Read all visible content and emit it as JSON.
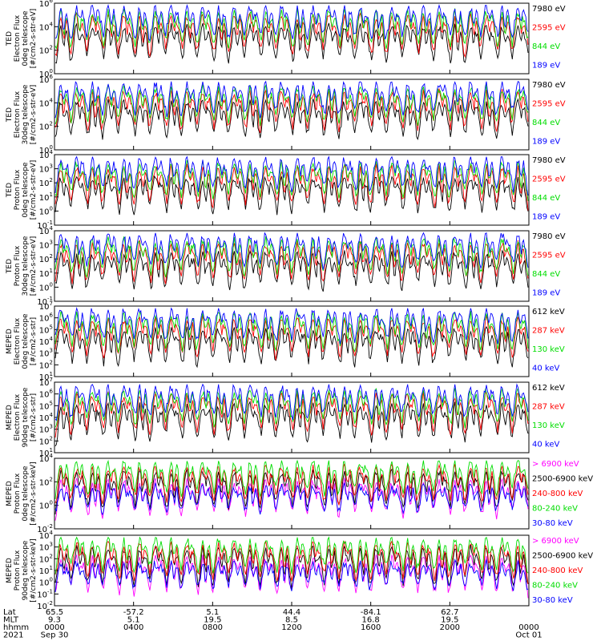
{
  "colors": {
    "black": "#000000",
    "red": "#ff0000",
    "green": "#00dd00",
    "blue": "#0000ff",
    "magenta": "#ff00ff"
  },
  "chart_data": [
    {
      "type": "line",
      "ylabel": [
        "TED",
        "Electron Flux",
        "0deg telescope",
        "[#/cm2-s-str-eV]"
      ],
      "scale": "log",
      "ylim_exp": [
        0,
        6
      ],
      "tick_exponents": [
        0,
        2,
        4,
        6
      ],
      "legend": [
        {
          "label": "7980 eV",
          "color": "#000000"
        },
        {
          "label": "2595 eV",
          "color": "#ff0000"
        },
        {
          "label": "844 eV",
          "color": "#00dd00"
        },
        {
          "label": "189 eV",
          "color": "#0000ff"
        }
      ]
    },
    {
      "type": "line",
      "ylabel": [
        "TED",
        "Electron Flux",
        "30deg telescope",
        "[#/cm2-s-str-eV]"
      ],
      "scale": "log",
      "ylim_exp": [
        0,
        6
      ],
      "tick_exponents": [
        0,
        2,
        4,
        6
      ],
      "legend": [
        {
          "label": "7980 eV",
          "color": "#000000"
        },
        {
          "label": "2595 eV",
          "color": "#ff0000"
        },
        {
          "label": "844 eV",
          "color": "#00dd00"
        },
        {
          "label": "189 eV",
          "color": "#0000ff"
        }
      ]
    },
    {
      "type": "line",
      "ylabel": [
        "TED",
        "Proton Flux",
        "0deg telescope",
        "[#/cm2-s-str-eV]"
      ],
      "scale": "log",
      "ylim_exp": [
        -1,
        4
      ],
      "tick_exponents": [
        -1,
        0,
        1,
        2,
        3,
        4
      ],
      "legend": [
        {
          "label": "7980 eV",
          "color": "#000000"
        },
        {
          "label": "2595 eV",
          "color": "#ff0000"
        },
        {
          "label": "844 eV",
          "color": "#00dd00"
        },
        {
          "label": "189 eV",
          "color": "#0000ff"
        }
      ]
    },
    {
      "type": "line",
      "ylabel": [
        "TED",
        "Proton Flux",
        "30deg telescope",
        "[#/cm2-s-str-eV]"
      ],
      "scale": "log",
      "ylim_exp": [
        -1,
        4
      ],
      "tick_exponents": [
        -1,
        0,
        1,
        2,
        3,
        4
      ],
      "legend": [
        {
          "label": "7980 eV",
          "color": "#000000"
        },
        {
          "label": "2595 eV",
          "color": "#ff0000"
        },
        {
          "label": "844 eV",
          "color": "#00dd00"
        },
        {
          "label": "189 eV",
          "color": "#0000ff"
        }
      ]
    },
    {
      "type": "line",
      "ylabel": [
        "MEPED",
        "Electron Flux",
        "0deg telescope",
        "[#/cm2-s-str]"
      ],
      "scale": "log",
      "ylim_exp": [
        1,
        7
      ],
      "tick_exponents": [
        1,
        2,
        3,
        4,
        5,
        6,
        7
      ],
      "legend": [
        {
          "label": "612 keV",
          "color": "#000000"
        },
        {
          "label": "287 keV",
          "color": "#ff0000"
        },
        {
          "label": "130 keV",
          "color": "#00dd00"
        },
        {
          "label": "40 keV",
          "color": "#0000ff"
        }
      ]
    },
    {
      "type": "line",
      "ylabel": [
        "MEPED",
        "Electron Flux",
        "90deg telescope",
        "[#/cm2-s-str]"
      ],
      "scale": "log",
      "ylim_exp": [
        1,
        7
      ],
      "tick_exponents": [
        1,
        2,
        3,
        4,
        5,
        6,
        7
      ],
      "legend": [
        {
          "label": "612 keV",
          "color": "#000000"
        },
        {
          "label": "287 keV",
          "color": "#ff0000"
        },
        {
          "label": "130 keV",
          "color": "#00dd00"
        },
        {
          "label": "40 keV",
          "color": "#0000ff"
        }
      ]
    },
    {
      "type": "line",
      "ylabel": [
        "MEPED",
        "Proton Flux",
        "0deg telescope",
        "[#/cm2-s-str-keV]"
      ],
      "scale": "log",
      "ylim_exp": [
        -2,
        4
      ],
      "tick_exponents": [
        -2,
        0,
        2,
        4
      ],
      "legend": [
        {
          "label": "> 6900 keV",
          "color": "#ff00ff"
        },
        {
          "label": "2500-6900 keV",
          "color": "#000000"
        },
        {
          "label": "240-800 keV",
          "color": "#ff0000"
        },
        {
          "label": "80-240 keV",
          "color": "#00dd00"
        },
        {
          "label": "30-80 keV",
          "color": "#0000ff"
        }
      ]
    },
    {
      "type": "line",
      "ylabel": [
        "MEPED",
        "Proton Flux",
        "90deg telescope",
        "[#/cm2-s-str-keV]"
      ],
      "scale": "log",
      "ylim_exp": [
        -2,
        4
      ],
      "tick_exponents": [
        -2,
        -1,
        0,
        1,
        2,
        3,
        4
      ],
      "legend": [
        {
          "label": "> 6900 keV",
          "color": "#ff00ff"
        },
        {
          "label": "2500-6900 keV",
          "color": "#000000"
        },
        {
          "label": "240-800 keV",
          "color": "#ff0000"
        },
        {
          "label": "80-240 keV",
          "color": "#00dd00"
        },
        {
          "label": "30-80 keV",
          "color": "#0000ff"
        }
      ]
    }
  ],
  "x_axis": {
    "row_labels": [
      "Lat",
      "MLT",
      "hhmm",
      "2021"
    ],
    "ticks": [
      {
        "lat": "65.5",
        "mlt": "9.3",
        "hhmm": "0000",
        "date": "Sep 30"
      },
      {
        "lat": "-57.2",
        "mlt": "5.1",
        "hhmm": "0400",
        "date": ""
      },
      {
        "lat": "5.1",
        "mlt": "19.5",
        "hhmm": "0800",
        "date": ""
      },
      {
        "lat": "44.4",
        "mlt": "8.5",
        "hhmm": "1200",
        "date": ""
      },
      {
        "lat": "-84.1",
        "mlt": "16.8",
        "hhmm": "1600",
        "date": ""
      },
      {
        "lat": "62.7",
        "mlt": "19.5",
        "hhmm": "2000",
        "date": ""
      },
      {
        "lat": "",
        "mlt": "",
        "hhmm": "0000",
        "date": "Oct 01"
      }
    ]
  }
}
